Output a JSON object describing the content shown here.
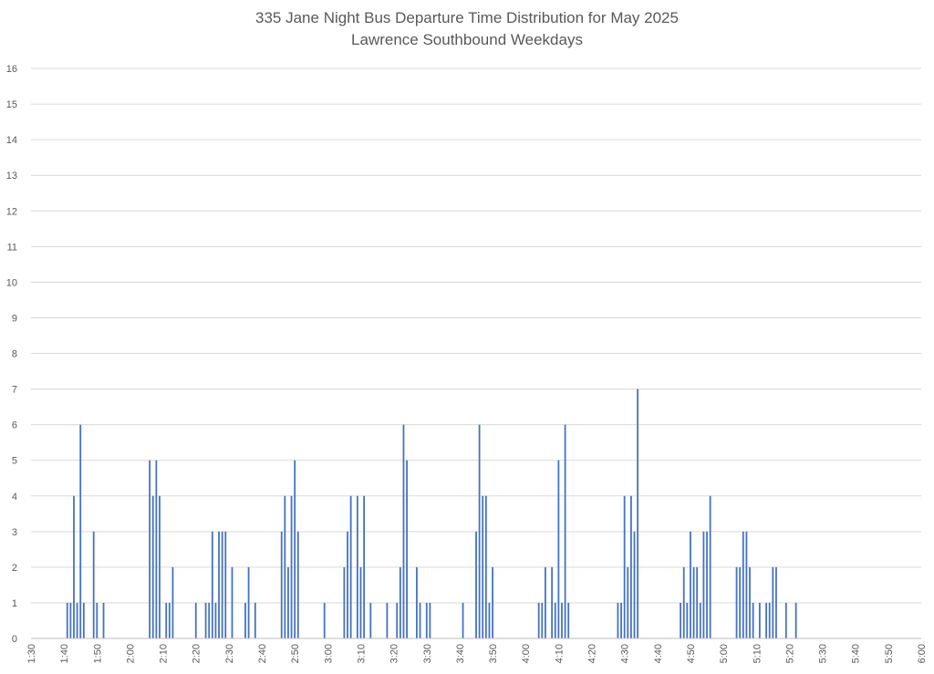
{
  "chart_data": {
    "type": "bar",
    "title": "335 Jane Night Bus Departure Time Distribution for May 2025",
    "subtitle": "Lawrence Southbound Weekdays",
    "xlabel": "",
    "ylabel": "",
    "xlim": [
      "1:30",
      "6:00"
    ],
    "ylim": [
      0,
      16
    ],
    "grid": true,
    "legend": "none",
    "bar_color": "#4472c4",
    "y_ticks": [
      0,
      1,
      2,
      3,
      4,
      5,
      6,
      7,
      8,
      9,
      10,
      11,
      12,
      13,
      14,
      15,
      16
    ],
    "x_tick_labels": [
      "1:30",
      "1:40",
      "1:50",
      "2:00",
      "2:10",
      "2:20",
      "2:30",
      "2:40",
      "2:50",
      "3:00",
      "3:10",
      "3:20",
      "3:30",
      "3:40",
      "3:50",
      "4:00",
      "4:10",
      "4:20",
      "4:30",
      "4:40",
      "4:50",
      "5:00",
      "5:10",
      "5:20",
      "5:30",
      "5:40",
      "5:50",
      "6:00"
    ],
    "points": [
      [
        "1:41",
        1
      ],
      [
        "1:42",
        1
      ],
      [
        "1:43",
        4
      ],
      [
        "1:44",
        1
      ],
      [
        "1:45",
        6
      ],
      [
        "1:46",
        1
      ],
      [
        "1:49",
        3
      ],
      [
        "1:50",
        1
      ],
      [
        "1:52",
        1
      ],
      [
        "2:06",
        5
      ],
      [
        "2:07",
        4
      ],
      [
        "2:08",
        5
      ],
      [
        "2:09",
        4
      ],
      [
        "2:11",
        1
      ],
      [
        "2:12",
        1
      ],
      [
        "2:13",
        2
      ],
      [
        "2:20",
        1
      ],
      [
        "2:23",
        1
      ],
      [
        "2:24",
        1
      ],
      [
        "2:25",
        3
      ],
      [
        "2:26",
        1
      ],
      [
        "2:27",
        3
      ],
      [
        "2:28",
        3
      ],
      [
        "2:29",
        3
      ],
      [
        "2:31",
        2
      ],
      [
        "2:35",
        1
      ],
      [
        "2:36",
        2
      ],
      [
        "2:38",
        1
      ],
      [
        "2:46",
        3
      ],
      [
        "2:47",
        4
      ],
      [
        "2:48",
        2
      ],
      [
        "2:49",
        4
      ],
      [
        "2:50",
        5
      ],
      [
        "2:51",
        3
      ],
      [
        "2:59",
        1
      ],
      [
        "3:05",
        2
      ],
      [
        "3:06",
        3
      ],
      [
        "3:07",
        4
      ],
      [
        "3:09",
        4
      ],
      [
        "3:10",
        2
      ],
      [
        "3:11",
        4
      ],
      [
        "3:13",
        1
      ],
      [
        "3:18",
        1
      ],
      [
        "3:21",
        1
      ],
      [
        "3:22",
        2
      ],
      [
        "3:23",
        6
      ],
      [
        "3:24",
        5
      ],
      [
        "3:27",
        2
      ],
      [
        "3:28",
        1
      ],
      [
        "3:30",
        1
      ],
      [
        "3:31",
        1
      ],
      [
        "3:41",
        1
      ],
      [
        "3:45",
        3
      ],
      [
        "3:46",
        6
      ],
      [
        "3:47",
        4
      ],
      [
        "3:48",
        4
      ],
      [
        "3:49",
        1
      ],
      [
        "3:50",
        2
      ],
      [
        "4:04",
        1
      ],
      [
        "4:05",
        1
      ],
      [
        "4:06",
        2
      ],
      [
        "4:08",
        2
      ],
      [
        "4:09",
        1
      ],
      [
        "4:10",
        5
      ],
      [
        "4:11",
        1
      ],
      [
        "4:12",
        6
      ],
      [
        "4:13",
        1
      ],
      [
        "4:28",
        1
      ],
      [
        "4:29",
        1
      ],
      [
        "4:30",
        4
      ],
      [
        "4:31",
        2
      ],
      [
        "4:32",
        4
      ],
      [
        "4:33",
        3
      ],
      [
        "4:34",
        7
      ],
      [
        "4:47",
        1
      ],
      [
        "4:48",
        2
      ],
      [
        "4:49",
        1
      ],
      [
        "4:50",
        3
      ],
      [
        "4:51",
        2
      ],
      [
        "4:52",
        2
      ],
      [
        "4:53",
        1
      ],
      [
        "4:54",
        3
      ],
      [
        "4:55",
        3
      ],
      [
        "4:56",
        4
      ],
      [
        "5:04",
        2
      ],
      [
        "5:05",
        2
      ],
      [
        "5:06",
        3
      ],
      [
        "5:07",
        3
      ],
      [
        "5:08",
        2
      ],
      [
        "5:09",
        1
      ],
      [
        "5:11",
        1
      ],
      [
        "5:13",
        1
      ],
      [
        "5:14",
        1
      ],
      [
        "5:15",
        2
      ],
      [
        "5:16",
        2
      ],
      [
        "5:19",
        1
      ],
      [
        "5:22",
        1
      ]
    ]
  }
}
